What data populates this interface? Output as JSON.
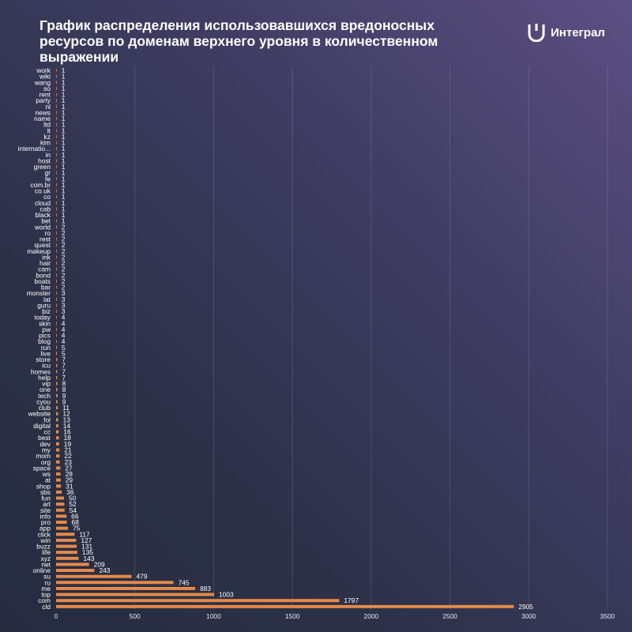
{
  "title": "График распределения использовавшихся вредоносных ресурсов по доменам верхнего уровня в количественном выражении",
  "brand": {
    "name": "Интеграл",
    "icon": "integral-logo-icon"
  },
  "colors": {
    "bar": "#e58a4a",
    "text": "#ffffff",
    "background_dark": "#262c3e",
    "background_light": "#5c4f82"
  },
  "chart_data": {
    "type": "bar",
    "orientation": "horizontal",
    "categories": [
      "work",
      "wiki",
      "wang",
      "so",
      "rent",
      "party",
      "nl",
      "news",
      "name",
      "ltd",
      "lt",
      "kz",
      "kim",
      "internatio...",
      "in",
      "host",
      "green",
      "gr",
      "fe",
      "com.br",
      "co.uk",
      "co",
      "cloud",
      "cab",
      "black",
      "bet",
      "world",
      "ro",
      "rest",
      "quest",
      "makeup",
      "ink",
      "hair",
      "cam",
      "bond",
      "boats",
      "bar",
      "monster",
      "lat",
      "guru",
      "biz",
      "today",
      "skin",
      "pw",
      "pics",
      "blog",
      "run",
      "live",
      "store",
      "icu",
      "homes",
      "help",
      "vip",
      "one",
      "tech",
      "cyou",
      "club",
      "website",
      "fol",
      "digital",
      "cc",
      "best",
      "dev",
      "my",
      "mom",
      "org",
      "space",
      "ws",
      "at",
      "shop",
      "sbs",
      "fun",
      "art",
      "site",
      "info",
      "pro",
      "app",
      "click",
      "win",
      "buzz",
      "life",
      "xyz",
      "net",
      "online",
      "su",
      "ru",
      "me",
      "top",
      "com",
      "cld"
    ],
    "values": [
      1,
      1,
      1,
      1,
      1,
      1,
      1,
      1,
      1,
      1,
      1,
      1,
      1,
      1,
      1,
      1,
      1,
      1,
      1,
      1,
      1,
      1,
      1,
      1,
      1,
      1,
      2,
      2,
      2,
      2,
      2,
      2,
      2,
      2,
      2,
      2,
      2,
      3,
      3,
      3,
      3,
      4,
      4,
      4,
      4,
      4,
      5,
      5,
      7,
      7,
      7,
      7,
      8,
      8,
      9,
      9,
      11,
      12,
      13,
      14,
      16,
      18,
      19,
      21,
      22,
      23,
      27,
      28,
      29,
      31,
      36,
      50,
      52,
      54,
      66,
      68,
      75,
      117,
      127,
      131,
      135,
      143,
      209,
      243,
      479,
      745,
      883,
      1003,
      1797,
      2905
    ],
    "xlim": [
      0,
      3500
    ],
    "x_ticks": [
      "0",
      "500",
      "1000",
      "1500",
      "2000",
      "2500",
      "3000",
      "3500"
    ],
    "grid": true,
    "legend": "none"
  }
}
